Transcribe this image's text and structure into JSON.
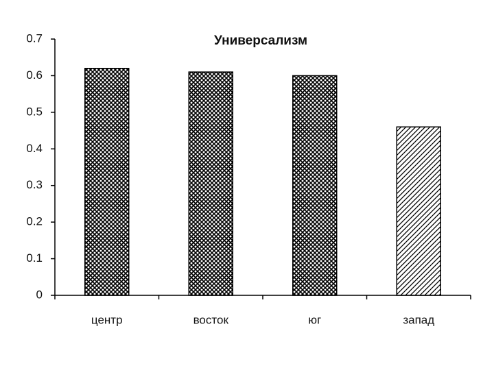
{
  "chart_data": {
    "type": "bar",
    "title": "Универсализм",
    "categories": [
      "центр",
      "восток",
      "юг",
      "запад"
    ],
    "values": [
      0.62,
      0.61,
      0.6,
      0.46
    ],
    "fills": [
      "crosshatch",
      "crosshatch",
      "crosshatch",
      "diagonal"
    ],
    "ylim": [
      0,
      0.7
    ],
    "yticks": [
      0,
      0.1,
      0.2,
      0.3,
      0.4,
      0.5,
      0.6,
      0.7
    ],
    "grid": false
  }
}
